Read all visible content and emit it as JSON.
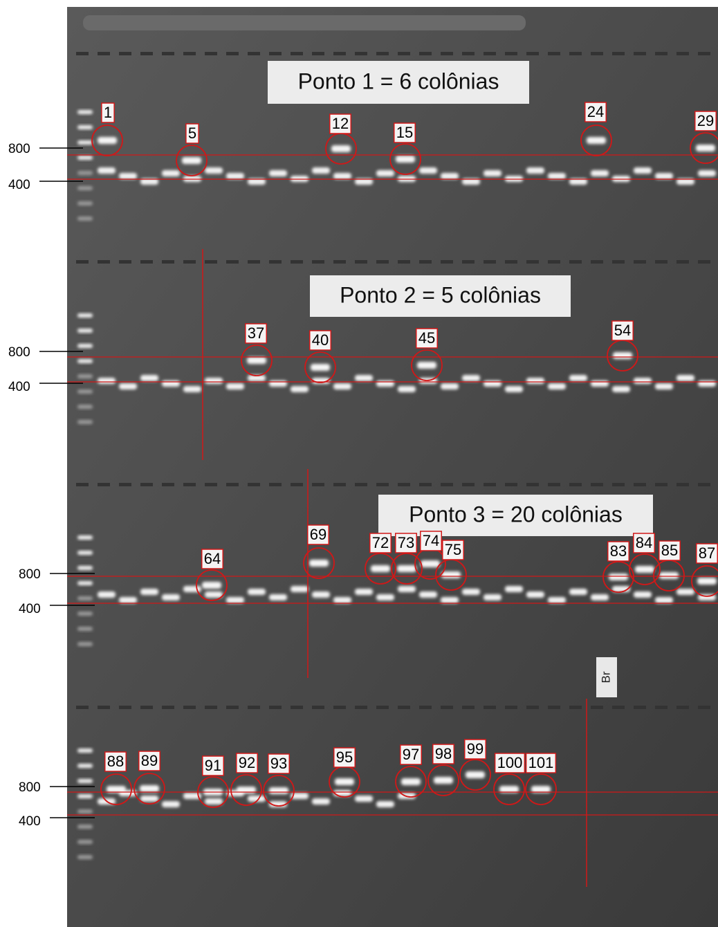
{
  "panels": [
    {
      "title": "Ponto 1 = 6 colônias",
      "markers": [
        800,
        400
      ],
      "colonies": [
        "1",
        "5",
        "12",
        "15",
        "24",
        "29"
      ]
    },
    {
      "title": "Ponto 2 = 5 colônias",
      "markers": [
        800,
        400
      ],
      "colonies": [
        "37",
        "40",
        "45",
        "54"
      ]
    },
    {
      "title": "Ponto 3 = 20 colônias",
      "markers": [
        800,
        400
      ],
      "colonies": [
        "64",
        "69",
        "72",
        "73",
        "74",
        "75",
        "83",
        "84",
        "85",
        "87"
      ]
    },
    {
      "markers": [
        800,
        400
      ],
      "colonies": [
        "88",
        "89",
        "91",
        "92",
        "93",
        "95",
        "97",
        "98",
        "99",
        "100",
        "101"
      ]
    }
  ],
  "blank_label": "Br"
}
